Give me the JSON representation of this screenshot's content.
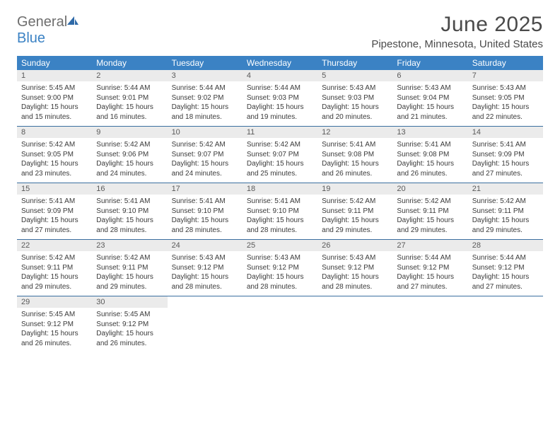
{
  "logo": {
    "general": "General",
    "blue": "Blue"
  },
  "title": "June 2025",
  "subtitle": "Pipestone, Minnesota, United States",
  "colors": {
    "header_bg": "#3b82c4",
    "header_text": "#ffffff",
    "daynum_bg": "#ebebeb",
    "week_divider": "#3b6fa0",
    "body_text": "#3a3a3a",
    "title_text": "#4a4a4a",
    "logo_gray": "#6e6e6e",
    "logo_blue": "#3b82c4"
  },
  "days_of_week": [
    "Sunday",
    "Monday",
    "Tuesday",
    "Wednesday",
    "Thursday",
    "Friday",
    "Saturday"
  ],
  "weeks": [
    [
      {
        "num": "1",
        "sunrise": "5:45 AM",
        "sunset": "9:00 PM",
        "daylight": "15 hours and 15 minutes."
      },
      {
        "num": "2",
        "sunrise": "5:44 AM",
        "sunset": "9:01 PM",
        "daylight": "15 hours and 16 minutes."
      },
      {
        "num": "3",
        "sunrise": "5:44 AM",
        "sunset": "9:02 PM",
        "daylight": "15 hours and 18 minutes."
      },
      {
        "num": "4",
        "sunrise": "5:44 AM",
        "sunset": "9:03 PM",
        "daylight": "15 hours and 19 minutes."
      },
      {
        "num": "5",
        "sunrise": "5:43 AM",
        "sunset": "9:03 PM",
        "daylight": "15 hours and 20 minutes."
      },
      {
        "num": "6",
        "sunrise": "5:43 AM",
        "sunset": "9:04 PM",
        "daylight": "15 hours and 21 minutes."
      },
      {
        "num": "7",
        "sunrise": "5:43 AM",
        "sunset": "9:05 PM",
        "daylight": "15 hours and 22 minutes."
      }
    ],
    [
      {
        "num": "8",
        "sunrise": "5:42 AM",
        "sunset": "9:05 PM",
        "daylight": "15 hours and 23 minutes."
      },
      {
        "num": "9",
        "sunrise": "5:42 AM",
        "sunset": "9:06 PM",
        "daylight": "15 hours and 24 minutes."
      },
      {
        "num": "10",
        "sunrise": "5:42 AM",
        "sunset": "9:07 PM",
        "daylight": "15 hours and 24 minutes."
      },
      {
        "num": "11",
        "sunrise": "5:42 AM",
        "sunset": "9:07 PM",
        "daylight": "15 hours and 25 minutes."
      },
      {
        "num": "12",
        "sunrise": "5:41 AM",
        "sunset": "9:08 PM",
        "daylight": "15 hours and 26 minutes."
      },
      {
        "num": "13",
        "sunrise": "5:41 AM",
        "sunset": "9:08 PM",
        "daylight": "15 hours and 26 minutes."
      },
      {
        "num": "14",
        "sunrise": "5:41 AM",
        "sunset": "9:09 PM",
        "daylight": "15 hours and 27 minutes."
      }
    ],
    [
      {
        "num": "15",
        "sunrise": "5:41 AM",
        "sunset": "9:09 PM",
        "daylight": "15 hours and 27 minutes."
      },
      {
        "num": "16",
        "sunrise": "5:41 AM",
        "sunset": "9:10 PM",
        "daylight": "15 hours and 28 minutes."
      },
      {
        "num": "17",
        "sunrise": "5:41 AM",
        "sunset": "9:10 PM",
        "daylight": "15 hours and 28 minutes."
      },
      {
        "num": "18",
        "sunrise": "5:41 AM",
        "sunset": "9:10 PM",
        "daylight": "15 hours and 28 minutes."
      },
      {
        "num": "19",
        "sunrise": "5:42 AM",
        "sunset": "9:11 PM",
        "daylight": "15 hours and 29 minutes."
      },
      {
        "num": "20",
        "sunrise": "5:42 AM",
        "sunset": "9:11 PM",
        "daylight": "15 hours and 29 minutes."
      },
      {
        "num": "21",
        "sunrise": "5:42 AM",
        "sunset": "9:11 PM",
        "daylight": "15 hours and 29 minutes."
      }
    ],
    [
      {
        "num": "22",
        "sunrise": "5:42 AM",
        "sunset": "9:11 PM",
        "daylight": "15 hours and 29 minutes."
      },
      {
        "num": "23",
        "sunrise": "5:42 AM",
        "sunset": "9:11 PM",
        "daylight": "15 hours and 29 minutes."
      },
      {
        "num": "24",
        "sunrise": "5:43 AM",
        "sunset": "9:12 PM",
        "daylight": "15 hours and 28 minutes."
      },
      {
        "num": "25",
        "sunrise": "5:43 AM",
        "sunset": "9:12 PM",
        "daylight": "15 hours and 28 minutes."
      },
      {
        "num": "26",
        "sunrise": "5:43 AM",
        "sunset": "9:12 PM",
        "daylight": "15 hours and 28 minutes."
      },
      {
        "num": "27",
        "sunrise": "5:44 AM",
        "sunset": "9:12 PM",
        "daylight": "15 hours and 27 minutes."
      },
      {
        "num": "28",
        "sunrise": "5:44 AM",
        "sunset": "9:12 PM",
        "daylight": "15 hours and 27 minutes."
      }
    ],
    [
      {
        "num": "29",
        "sunrise": "5:45 AM",
        "sunset": "9:12 PM",
        "daylight": "15 hours and 26 minutes."
      },
      {
        "num": "30",
        "sunrise": "5:45 AM",
        "sunset": "9:12 PM",
        "daylight": "15 hours and 26 minutes."
      },
      null,
      null,
      null,
      null,
      null
    ]
  ],
  "labels": {
    "sunrise": "Sunrise: ",
    "sunset": "Sunset: ",
    "daylight": "Daylight: "
  }
}
